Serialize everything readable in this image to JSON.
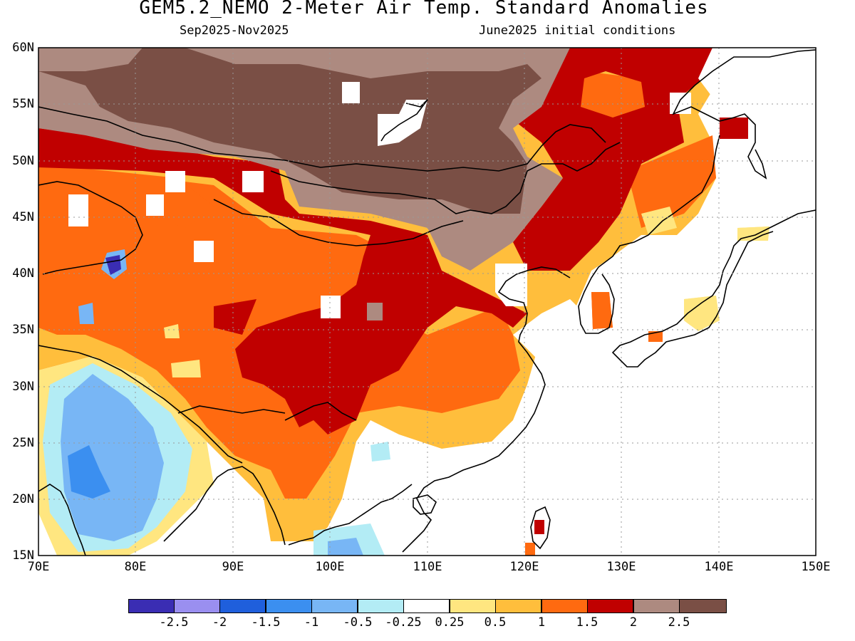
{
  "title": "GEM5.2_NEMO 2-Meter Air Temp. Standard Anomalies",
  "subtitle_left": "Sep2025-Nov2025",
  "subtitle_right": "June2025 initial conditions",
  "lat_labels": [
    "60N",
    "55N",
    "50N",
    "45N",
    "40N",
    "35N",
    "30N",
    "25N",
    "20N",
    "15N"
  ],
  "lon_labels": [
    "70E",
    "80E",
    "90E",
    "100E",
    "110E",
    "120E",
    "130E",
    "140E",
    "150E"
  ],
  "colorbar": {
    "colors": [
      "#3a2db3",
      "#9a8ff0",
      "#1f5fdc",
      "#3b8ff0",
      "#78b6f5",
      "#b3ecf5",
      "#ffffff",
      "#ffe680",
      "#ffbe3c",
      "#ff6a10",
      "#c00000",
      "#ad8a80",
      "#7a4f45"
    ],
    "labels": [
      "-2.5",
      "-2",
      "-1.5",
      "-1",
      "-0.5",
      "-0.25",
      "0.25",
      "0.5",
      "1",
      "1.5",
      "2",
      "2.5"
    ]
  },
  "map_extent": {
    "lon": [
      70,
      150
    ],
    "lat": [
      15,
      60
    ]
  }
}
